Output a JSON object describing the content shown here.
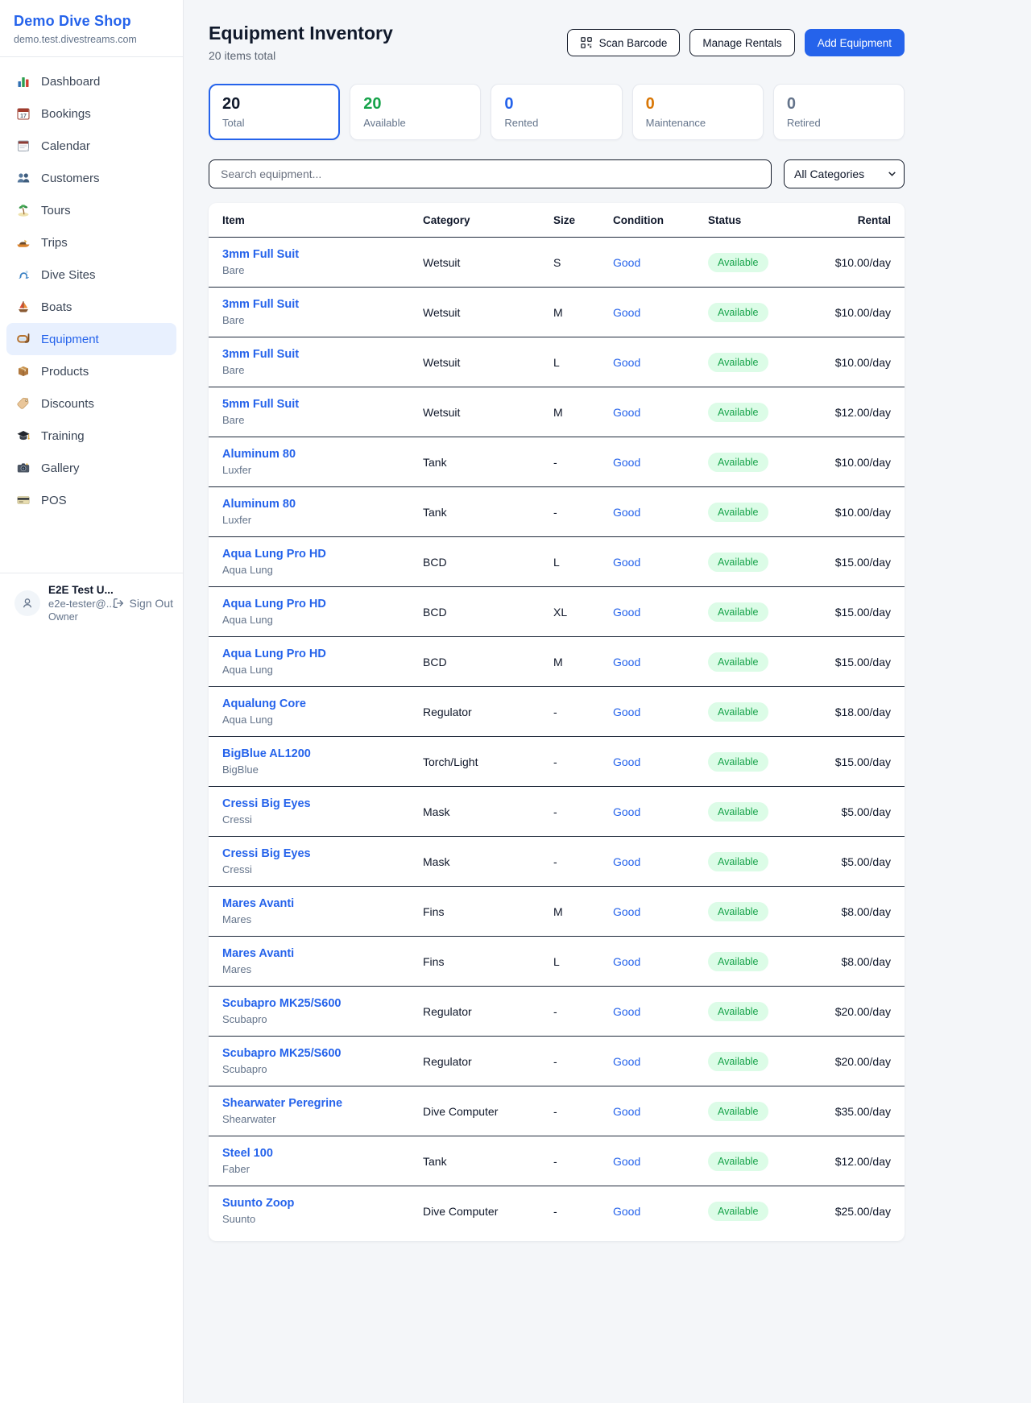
{
  "sidebar": {
    "brand": "Demo Dive Shop",
    "domain": "demo.test.divestreams.com",
    "nav": [
      {
        "icon": "dashboard-chart-icon",
        "label": "Dashboard",
        "active": false
      },
      {
        "icon": "bookings-calendar-icon",
        "label": "Bookings",
        "active": false
      },
      {
        "icon": "calendar-icon",
        "label": "Calendar",
        "active": false
      },
      {
        "icon": "customers-icon",
        "label": "Customers",
        "active": false
      },
      {
        "icon": "tours-island-icon",
        "label": "Tours",
        "active": false
      },
      {
        "icon": "trips-boat-icon",
        "label": "Trips",
        "active": false
      },
      {
        "icon": "dive-sites-wave-icon",
        "label": "Dive Sites",
        "active": false
      },
      {
        "icon": "boats-sailboat-icon",
        "label": "Boats",
        "active": false
      },
      {
        "icon": "equipment-mask-icon",
        "label": "Equipment",
        "active": true
      },
      {
        "icon": "products-box-icon",
        "label": "Products",
        "active": false
      },
      {
        "icon": "discounts-tag-icon",
        "label": "Discounts",
        "active": false
      },
      {
        "icon": "training-cap-icon",
        "label": "Training",
        "active": false
      },
      {
        "icon": "gallery-camera-icon",
        "label": "Gallery",
        "active": false
      },
      {
        "icon": "pos-card-icon",
        "label": "POS",
        "active": false
      }
    ],
    "user": {
      "name": "E2E Test U...",
      "email": "e2e-tester@...",
      "role": "Owner",
      "sign_out": "Sign Out"
    }
  },
  "header": {
    "title": "Equipment Inventory",
    "subtitle": "20 items total",
    "scan_barcode": "Scan Barcode",
    "manage_rentals": "Manage Rentals",
    "add_equipment": "Add Equipment"
  },
  "stats": [
    {
      "value": "20",
      "label": "Total",
      "color": "#10192b",
      "active": true
    },
    {
      "value": "20",
      "label": "Available",
      "color": "#16a34a",
      "active": false
    },
    {
      "value": "0",
      "label": "Rented",
      "color": "#2563eb",
      "active": false
    },
    {
      "value": "0",
      "label": "Maintenance",
      "color": "#d97706",
      "active": false
    },
    {
      "value": "0",
      "label": "Retired",
      "color": "#64748b",
      "active": false
    }
  ],
  "filters": {
    "search_placeholder": "Search equipment...",
    "category": "All Categories"
  },
  "table": {
    "columns": [
      "Item",
      "Category",
      "Size",
      "Condition",
      "Status",
      "Rental"
    ],
    "rows": [
      {
        "name": "3mm Full Suit",
        "brand": "Bare",
        "category": "Wetsuit",
        "size": "S",
        "condition": "Good",
        "status": "Available",
        "rental": "$10.00/day"
      },
      {
        "name": "3mm Full Suit",
        "brand": "Bare",
        "category": "Wetsuit",
        "size": "M",
        "condition": "Good",
        "status": "Available",
        "rental": "$10.00/day"
      },
      {
        "name": "3mm Full Suit",
        "brand": "Bare",
        "category": "Wetsuit",
        "size": "L",
        "condition": "Good",
        "status": "Available",
        "rental": "$10.00/day"
      },
      {
        "name": "5mm Full Suit",
        "brand": "Bare",
        "category": "Wetsuit",
        "size": "M",
        "condition": "Good",
        "status": "Available",
        "rental": "$12.00/day"
      },
      {
        "name": "Aluminum 80",
        "brand": "Luxfer",
        "category": "Tank",
        "size": "-",
        "condition": "Good",
        "status": "Available",
        "rental": "$10.00/day"
      },
      {
        "name": "Aluminum 80",
        "brand": "Luxfer",
        "category": "Tank",
        "size": "-",
        "condition": "Good",
        "status": "Available",
        "rental": "$10.00/day"
      },
      {
        "name": "Aqua Lung Pro HD",
        "brand": "Aqua Lung",
        "category": "BCD",
        "size": "L",
        "condition": "Good",
        "status": "Available",
        "rental": "$15.00/day"
      },
      {
        "name": "Aqua Lung Pro HD",
        "brand": "Aqua Lung",
        "category": "BCD",
        "size": "XL",
        "condition": "Good",
        "status": "Available",
        "rental": "$15.00/day"
      },
      {
        "name": "Aqua Lung Pro HD",
        "brand": "Aqua Lung",
        "category": "BCD",
        "size": "M",
        "condition": "Good",
        "status": "Available",
        "rental": "$15.00/day"
      },
      {
        "name": "Aqualung Core",
        "brand": "Aqua Lung",
        "category": "Regulator",
        "size": "-",
        "condition": "Good",
        "status": "Available",
        "rental": "$18.00/day"
      },
      {
        "name": "BigBlue AL1200",
        "brand": "BigBlue",
        "category": "Torch/Light",
        "size": "-",
        "condition": "Good",
        "status": "Available",
        "rental": "$15.00/day"
      },
      {
        "name": "Cressi Big Eyes",
        "brand": "Cressi",
        "category": "Mask",
        "size": "-",
        "condition": "Good",
        "status": "Available",
        "rental": "$5.00/day"
      },
      {
        "name": "Cressi Big Eyes",
        "brand": "Cressi",
        "category": "Mask",
        "size": "-",
        "condition": "Good",
        "status": "Available",
        "rental": "$5.00/day"
      },
      {
        "name": "Mares Avanti",
        "brand": "Mares",
        "category": "Fins",
        "size": "M",
        "condition": "Good",
        "status": "Available",
        "rental": "$8.00/day"
      },
      {
        "name": "Mares Avanti",
        "brand": "Mares",
        "category": "Fins",
        "size": "L",
        "condition": "Good",
        "status": "Available",
        "rental": "$8.00/day"
      },
      {
        "name": "Scubapro MK25/S600",
        "brand": "Scubapro",
        "category": "Regulator",
        "size": "-",
        "condition": "Good",
        "status": "Available",
        "rental": "$20.00/day"
      },
      {
        "name": "Scubapro MK25/S600",
        "brand": "Scubapro",
        "category": "Regulator",
        "size": "-",
        "condition": "Good",
        "status": "Available",
        "rental": "$20.00/day"
      },
      {
        "name": "Shearwater Peregrine",
        "brand": "Shearwater",
        "category": "Dive Computer",
        "size": "-",
        "condition": "Good",
        "status": "Available",
        "rental": "$35.00/day"
      },
      {
        "name": "Steel 100",
        "brand": "Faber",
        "category": "Tank",
        "size": "-",
        "condition": "Good",
        "status": "Available",
        "rental": "$12.00/day"
      },
      {
        "name": "Suunto Zoop",
        "brand": "Suunto",
        "category": "Dive Computer",
        "size": "-",
        "condition": "Good",
        "status": "Available",
        "rental": "$25.00/day"
      }
    ]
  },
  "colors": {
    "accent": "#2563eb",
    "available_green": "#16a34a",
    "badge_bg": "#dcfce7",
    "maintenance_orange": "#d97706",
    "retired_gray": "#64748b"
  }
}
